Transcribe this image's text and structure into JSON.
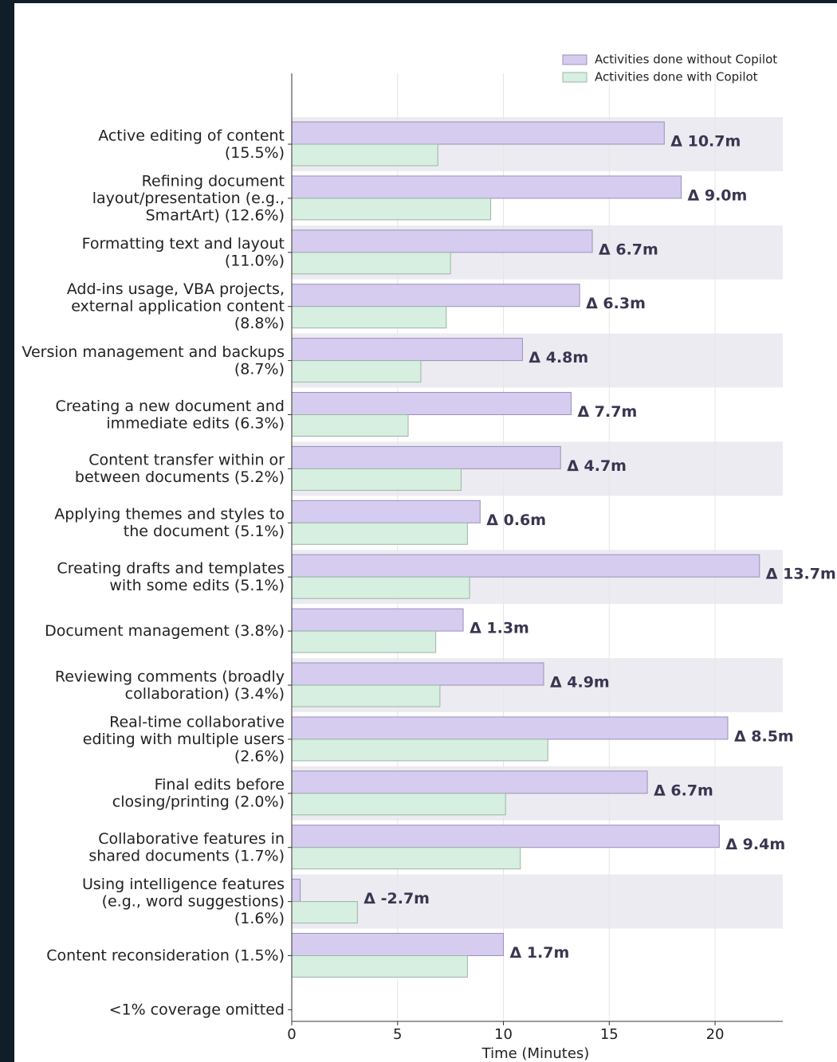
{
  "chart_data": {
    "type": "barh",
    "categories": [
      [
        "Active editing of content",
        "(15.5%)"
      ],
      [
        "Refining document",
        "layout/presentation (e.g.,",
        "SmartArt) (12.6%)"
      ],
      [
        "Formatting text and layout",
        "(11.0%)"
      ],
      [
        "Add-ins usage, VBA projects,",
        "external application content",
        "(8.8%)"
      ],
      [
        "Version management and backups",
        "(8.7%)"
      ],
      [
        "Creating a new document and",
        "immediate edits (6.3%)"
      ],
      [
        "Content transfer within or",
        "between documents (5.2%)"
      ],
      [
        "Applying themes and styles to",
        "the document (5.1%)"
      ],
      [
        "Creating drafts and templates",
        "with some edits (5.1%)"
      ],
      [
        "Document management (3.8%)"
      ],
      [
        "Reviewing comments (broadly",
        "collaboration) (3.4%)"
      ],
      [
        "Real-time collaborative",
        "editing with multiple users",
        "(2.6%)"
      ],
      [
        "Final edits before",
        "closing/printing (2.0%)"
      ],
      [
        "Collaborative features in",
        "shared documents (1.7%)"
      ],
      [
        "Using intelligence features",
        "(e.g., word suggestions)",
        "(1.6%)"
      ],
      [
        "Content reconsideration (1.5%)"
      ],
      [
        "<1% coverage omitted"
      ]
    ],
    "series": [
      {
        "name": "Activities done without Copilot",
        "color": "#d6ccf0",
        "values": [
          17.6,
          18.4,
          14.2,
          13.6,
          10.9,
          13.2,
          12.7,
          8.9,
          22.1,
          8.1,
          11.9,
          20.6,
          16.8,
          20.2,
          0.4,
          10.0,
          null
        ]
      },
      {
        "name": "Activities done with Copilot",
        "color": "#d6efe0",
        "values": [
          6.9,
          9.4,
          7.5,
          7.3,
          6.1,
          5.5,
          8.0,
          8.3,
          8.4,
          6.8,
          7.0,
          12.1,
          10.1,
          10.8,
          3.1,
          8.3,
          null
        ]
      }
    ],
    "annotations": [
      "Δ 10.7m",
      "Δ 9.0m",
      "Δ 6.7m",
      "Δ 6.3m",
      "Δ 4.8m",
      "Δ 7.7m",
      "Δ 4.7m",
      "Δ 0.6m",
      "Δ 13.7m",
      "Δ 1.3m",
      "Δ 4.9m",
      "Δ 8.5m",
      "Δ 6.7m",
      "Δ 9.4m",
      "Δ -2.7m",
      "Δ 1.7m",
      null
    ],
    "xlabel": "Time (Minutes)",
    "xlim": [
      0,
      23.2
    ],
    "xticks": [
      0,
      5,
      10,
      15,
      20
    ],
    "grid": true,
    "legend": "upper right"
  }
}
